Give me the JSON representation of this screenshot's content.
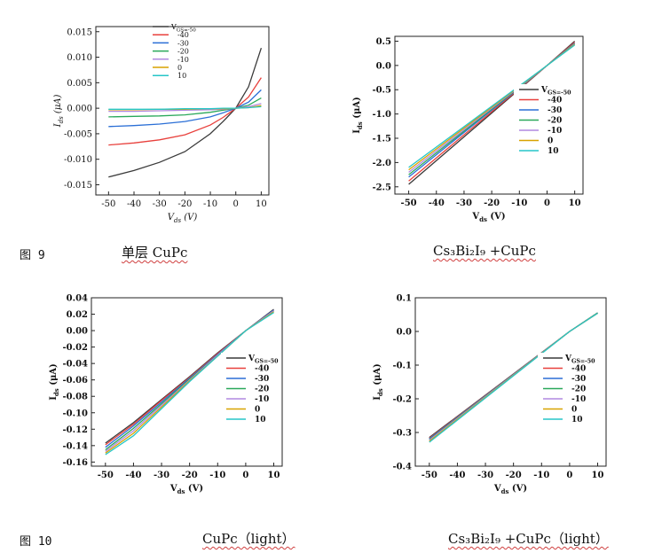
{
  "captions": {
    "fig9_label": "图 9",
    "fig9_left": "单层 CuPc",
    "fig9_right": "Cs₃Bi₂I₉ +CuPc",
    "fig10_label": "图 10",
    "fig10_left": "CuPc（light）",
    "fig10_right": "Cs₃Bi₂I₉ +CuPc（light）"
  },
  "series_colors": [
    "#3a3a3a",
    "#e8403c",
    "#2b6fd6",
    "#2aa85a",
    "#b088e0",
    "#d8a200",
    "#26c6c8"
  ],
  "chart_data": [
    {
      "id": "fig9a",
      "type": "line",
      "style": "italic",
      "xlabel": "V_ds (V)",
      "ylabel": "I_ds (μA)",
      "xlim": [
        -55,
        13
      ],
      "ylim": [
        -0.017,
        0.016
      ],
      "xticks": [
        -50,
        -40,
        -30,
        -20,
        -10,
        0,
        10
      ],
      "xticklabels": [
        "-50",
        "-40",
        "-30",
        "-20",
        "-10",
        "0",
        "10"
      ],
      "yticks": [
        -0.015,
        -0.01,
        -0.005,
        0.0,
        0.005,
        0.01,
        0.015
      ],
      "yticklabels": [
        "-0.015",
        "-0.010",
        "-0.005",
        "0.000",
        "0.005",
        "0.010",
        "0.015"
      ],
      "legend_placement": "top-left",
      "legend_labels": [
        "V_GS=-50",
        "-40",
        "-30",
        "-20",
        "-10",
        "0",
        "10"
      ],
      "series": [
        {
          "name": "-50",
          "x": [
            -50,
            -40,
            -30,
            -20,
            -10,
            -5,
            0,
            5,
            10
          ],
          "y": [
            -0.0135,
            -0.0122,
            -0.0106,
            -0.0085,
            -0.005,
            -0.0026,
            0.0,
            0.0042,
            0.0118
          ]
        },
        {
          "name": "-40",
          "x": [
            -50,
            -40,
            -30,
            -20,
            -10,
            -5,
            0,
            5,
            10
          ],
          "y": [
            -0.0072,
            -0.0068,
            -0.0062,
            -0.0052,
            -0.0033,
            -0.0018,
            0.0,
            0.0022,
            0.006
          ]
        },
        {
          "name": "-30",
          "x": [
            -50,
            -40,
            -30,
            -20,
            -10,
            -5,
            0,
            5,
            10
          ],
          "y": [
            -0.0036,
            -0.0034,
            -0.0031,
            -0.0026,
            -0.0017,
            -0.0009,
            0.0,
            0.0012,
            0.0036
          ]
        },
        {
          "name": "-20",
          "x": [
            -50,
            -40,
            -30,
            -20,
            -10,
            -5,
            0,
            5,
            10
          ],
          "y": [
            -0.0017,
            -0.0016,
            -0.0015,
            -0.0013,
            -0.0008,
            -0.0004,
            0.0,
            0.0006,
            0.002
          ]
        },
        {
          "name": "-10",
          "x": [
            -50,
            -40,
            -30,
            -20,
            -10,
            -5,
            0,
            5,
            10
          ],
          "y": [
            -0.0006,
            -0.0006,
            -0.0005,
            -0.0004,
            -0.0003,
            -0.0002,
            0.0,
            0.0003,
            0.0009
          ]
        },
        {
          "name": "0",
          "x": [
            -50,
            -40,
            -30,
            -20,
            -10,
            -5,
            0,
            5,
            10
          ],
          "y": [
            -0.0003,
            -0.0003,
            -0.0002,
            -0.0002,
            -0.0001,
            -0.0001,
            0.0,
            0.0001,
            0.0005
          ]
        },
        {
          "name": "10",
          "x": [
            -50,
            -40,
            -30,
            -20,
            -10,
            -5,
            0,
            5,
            10
          ],
          "y": [
            -0.0002,
            -0.0002,
            -0.0002,
            -0.0001,
            -0.0001,
            0.0,
            0.0,
            0.0001,
            0.0003
          ]
        }
      ]
    },
    {
      "id": "fig9b",
      "type": "line",
      "style": "bold",
      "xlabel": "V_ds (V)",
      "ylabel": "I_ds (μA)",
      "xlim": [
        -55,
        13
      ],
      "ylim": [
        -2.65,
        0.6
      ],
      "xticks": [
        -50,
        -40,
        -30,
        -20,
        -10,
        0,
        10
      ],
      "xticklabels": [
        "-50",
        "-40",
        "-30",
        "-20",
        "-10",
        "0",
        "10"
      ],
      "yticks": [
        -2.5,
        -2.0,
        -1.5,
        -1.0,
        -0.5,
        0.0,
        0.5
      ],
      "yticklabels": [
        "-2.5",
        "-2.0",
        "-1.5",
        "-1.0",
        "-0.5",
        "0.0",
        "0.5"
      ],
      "legend_placement": "bottom-right",
      "legend_labels": [
        "V_GS=-50",
        "-40",
        "-30",
        "-20",
        "-10",
        "0",
        "10"
      ],
      "series": [
        {
          "name": "-50",
          "x": [
            -50,
            0,
            10
          ],
          "y": [
            -2.45,
            0.0,
            0.5
          ]
        },
        {
          "name": "-40",
          "x": [
            -50,
            0,
            10
          ],
          "y": [
            -2.38,
            0.0,
            0.48
          ]
        },
        {
          "name": "-30",
          "x": [
            -50,
            0,
            10
          ],
          "y": [
            -2.3,
            0.0,
            0.46
          ]
        },
        {
          "name": "-20",
          "x": [
            -50,
            0,
            10
          ],
          "y": [
            -2.25,
            0.0,
            0.45
          ]
        },
        {
          "name": "-10",
          "x": [
            -50,
            0,
            10
          ],
          "y": [
            -2.2,
            0.0,
            0.44
          ]
        },
        {
          "name": "0",
          "x": [
            -50,
            0,
            10
          ],
          "y": [
            -2.15,
            0.0,
            0.43
          ]
        },
        {
          "name": "10",
          "x": [
            -50,
            0,
            10
          ],
          "y": [
            -2.1,
            0.0,
            0.42
          ]
        }
      ]
    },
    {
      "id": "fig10a",
      "type": "line",
      "style": "bold",
      "xlabel": "V_ds (V)",
      "ylabel": "I_ds (μA)",
      "xlim": [
        -55,
        13
      ],
      "ylim": [
        -0.165,
        0.04
      ],
      "xticks": [
        -50,
        -40,
        -30,
        -20,
        -10,
        0,
        10
      ],
      "xticklabels": [
        "-50",
        "-40",
        "-30",
        "-20",
        "-10",
        "0",
        "10"
      ],
      "yticks": [
        -0.16,
        -0.14,
        -0.12,
        -0.1,
        -0.08,
        -0.06,
        -0.04,
        -0.02,
        0.0,
        0.02,
        0.04
      ],
      "yticklabels": [
        "-0.16",
        "-0.14",
        "-0.12",
        "-0.10",
        "-0.08",
        "-0.06",
        "-0.04",
        "-0.02",
        "0.00",
        "0.02",
        "0.04"
      ],
      "legend_placement": "right",
      "legend_labels": [
        "V_GS=-50",
        "-40",
        "-30",
        "-20",
        "-10",
        "0",
        "10"
      ],
      "series": [
        {
          "name": "-50",
          "x": [
            -50,
            -40,
            -30,
            -20,
            -10,
            0,
            10
          ],
          "y": [
            -0.137,
            -0.112,
            -0.084,
            -0.056,
            -0.027,
            0.0,
            0.026
          ]
        },
        {
          "name": "-40",
          "x": [
            -50,
            -40,
            -30,
            -20,
            -10,
            0,
            10
          ],
          "y": [
            -0.139,
            -0.114,
            -0.085,
            -0.057,
            -0.028,
            0.0,
            0.025
          ]
        },
        {
          "name": "-30",
          "x": [
            -50,
            -40,
            -30,
            -20,
            -10,
            0,
            10
          ],
          "y": [
            -0.142,
            -0.116,
            -0.087,
            -0.058,
            -0.029,
            0.0,
            0.025
          ]
        },
        {
          "name": "-20",
          "x": [
            -50,
            -40,
            -30,
            -20,
            -10,
            0,
            10
          ],
          "y": [
            -0.145,
            -0.119,
            -0.089,
            -0.059,
            -0.03,
            0.0,
            0.024
          ]
        },
        {
          "name": "-10",
          "x": [
            -50,
            -40,
            -30,
            -20,
            -10,
            0,
            10
          ],
          "y": [
            -0.147,
            -0.122,
            -0.091,
            -0.06,
            -0.03,
            0.0,
            0.024
          ]
        },
        {
          "name": "0",
          "x": [
            -50,
            -40,
            -30,
            -20,
            -10,
            0,
            10
          ],
          "y": [
            -0.149,
            -0.125,
            -0.093,
            -0.061,
            -0.031,
            0.0,
            0.023
          ]
        },
        {
          "name": "10",
          "x": [
            -50,
            -40,
            -30,
            -20,
            -10,
            0,
            10
          ],
          "y": [
            -0.151,
            -0.128,
            -0.095,
            -0.062,
            -0.031,
            0.0,
            0.022
          ]
        }
      ]
    },
    {
      "id": "fig10b",
      "type": "line",
      "style": "bold",
      "xlabel": "V_ds (V)",
      "ylabel": "I_ds (μA)",
      "xlim": [
        -55,
        13
      ],
      "ylim": [
        -0.4,
        0.1
      ],
      "xticks": [
        -50,
        -40,
        -30,
        -20,
        -10,
        0,
        10
      ],
      "xticklabels": [
        "-50",
        "-40",
        "-30",
        "-20",
        "-10",
        "0",
        "10"
      ],
      "yticks": [
        -0.4,
        -0.3,
        -0.2,
        -0.1,
        0.0,
        0.1
      ],
      "yticklabels": [
        "-0.4",
        "-0.3",
        "-0.2",
        "-0.1",
        "0.0",
        "0.1"
      ],
      "legend_placement": "right",
      "legend_labels": [
        "V_GS=-50",
        "-40",
        "-30",
        "-20",
        "-10",
        "0",
        "10"
      ],
      "series": [
        {
          "name": "-50",
          "x": [
            -50,
            0,
            10
          ],
          "y": [
            -0.315,
            0.0,
            0.055
          ]
        },
        {
          "name": "-40",
          "x": [
            -50,
            0,
            10
          ],
          "y": [
            -0.317,
            0.0,
            0.055
          ]
        },
        {
          "name": "-30",
          "x": [
            -50,
            0,
            10
          ],
          "y": [
            -0.319,
            0.0,
            0.055
          ]
        },
        {
          "name": "-20",
          "x": [
            -50,
            0,
            10
          ],
          "y": [
            -0.321,
            0.0,
            0.055
          ]
        },
        {
          "name": "-10",
          "x": [
            -50,
            0,
            10
          ],
          "y": [
            -0.323,
            0.0,
            0.054
          ]
        },
        {
          "name": "0",
          "x": [
            -50,
            0,
            10
          ],
          "y": [
            -0.326,
            0.0,
            0.054
          ]
        },
        {
          "name": "10",
          "x": [
            -50,
            0,
            10
          ],
          "y": [
            -0.329,
            0.0,
            0.054
          ]
        }
      ]
    }
  ]
}
